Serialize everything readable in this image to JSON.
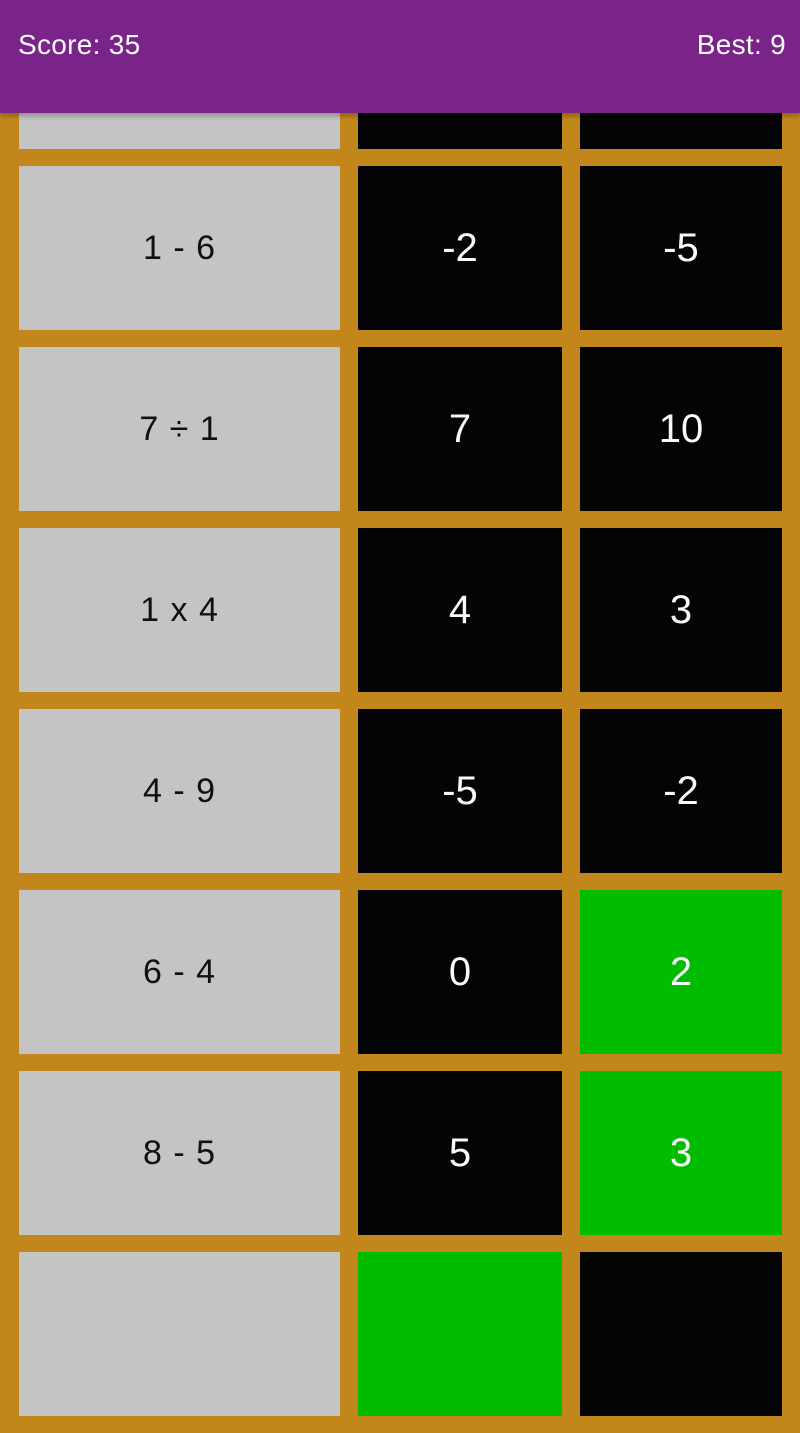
{
  "header": {
    "score": "Score: 35",
    "best": "Best: 9"
  },
  "colors": {
    "appbar_background": "#7A2489",
    "board_background": "#C1871B",
    "question_cell": "#C4C4C4",
    "answer_cell": "#040404",
    "correct_answer_cell": "#01BC01",
    "question_text": "#101010",
    "answer_text": "#FAFAFA",
    "header_text": "#FAFAFA"
  },
  "board": {
    "rows": [
      {
        "q": "",
        "a1": "",
        "a2": "",
        "a1_state": "default",
        "a2_state": "default"
      },
      {
        "q": "1 - 6",
        "a1": "-2",
        "a2": "-5",
        "a1_state": "default",
        "a2_state": "default"
      },
      {
        "q": "7 ÷ 1",
        "a1": "7",
        "a2": "10",
        "a1_state": "default",
        "a2_state": "default"
      },
      {
        "q": "1 x 4",
        "a1": "4",
        "a2": "3",
        "a1_state": "default",
        "a2_state": "default"
      },
      {
        "q": "4 - 9",
        "a1": "-5",
        "a2": "-2",
        "a1_state": "default",
        "a2_state": "default"
      },
      {
        "q": "6 - 4",
        "a1": "0",
        "a2": "2",
        "a1_state": "default",
        "a2_state": "correct"
      },
      {
        "q": "8 - 5",
        "a1": "5",
        "a2": "3",
        "a1_state": "default",
        "a2_state": "correct"
      },
      {
        "q": "",
        "a1": "",
        "a2": "",
        "a1_state": "correct",
        "a2_state": "default"
      }
    ]
  }
}
